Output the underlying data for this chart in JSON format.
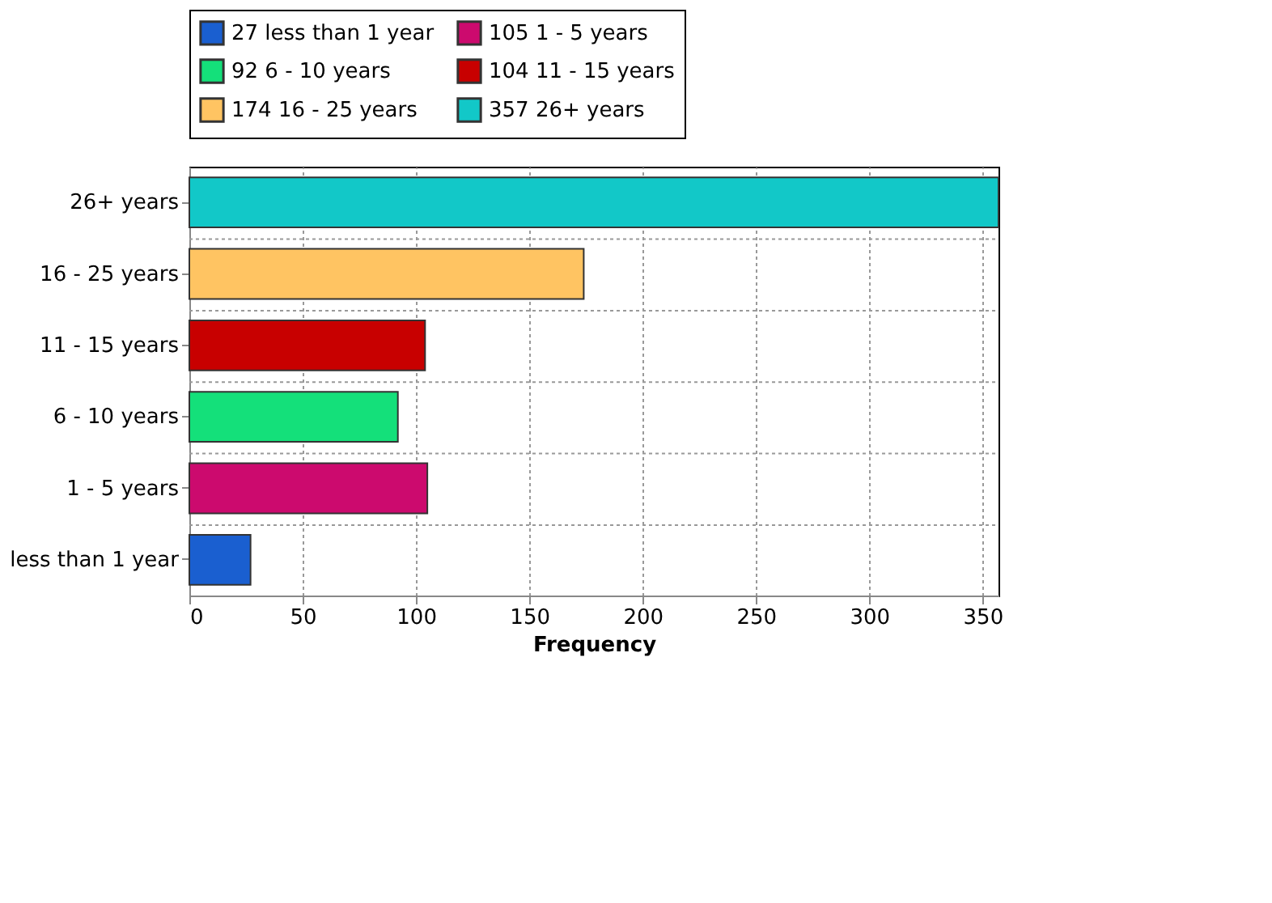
{
  "chart_data": {
    "type": "bar",
    "orientation": "horizontal",
    "xlabel": "Frequency",
    "categories": [
      "26+ years",
      "16 - 25 years",
      "11 - 15 years",
      "6 - 10 years",
      "1 - 5 years",
      "less than 1 year"
    ],
    "series": [
      {
        "name": "27 less than 1 year",
        "color": "#1a5fd0",
        "values": [
          null,
          null,
          null,
          null,
          null,
          27
        ]
      },
      {
        "name": "105 1 - 5 years",
        "color": "#cc0a6e",
        "values": [
          null,
          null,
          null,
          null,
          105,
          null
        ]
      },
      {
        "name": "92 6 - 10 years",
        "color": "#14e07a",
        "values": [
          null,
          null,
          null,
          92,
          null,
          null
        ]
      },
      {
        "name": "104 11 - 15 years",
        "color": "#c80000",
        "values": [
          null,
          null,
          104,
          null,
          null,
          null
        ]
      },
      {
        "name": "174 16 - 25 years",
        "color": "#ffc462",
        "values": [
          null,
          174,
          null,
          null,
          null,
          null
        ]
      },
      {
        "name": "357 26+ years",
        "color": "#12c8c8",
        "values": [
          357,
          null,
          null,
          null,
          null,
          null
        ]
      }
    ],
    "xlim": [
      0,
      357
    ],
    "xticks": [
      0,
      50,
      100,
      150,
      200,
      250,
      300,
      350
    ],
    "grid": true,
    "legend": "top"
  }
}
